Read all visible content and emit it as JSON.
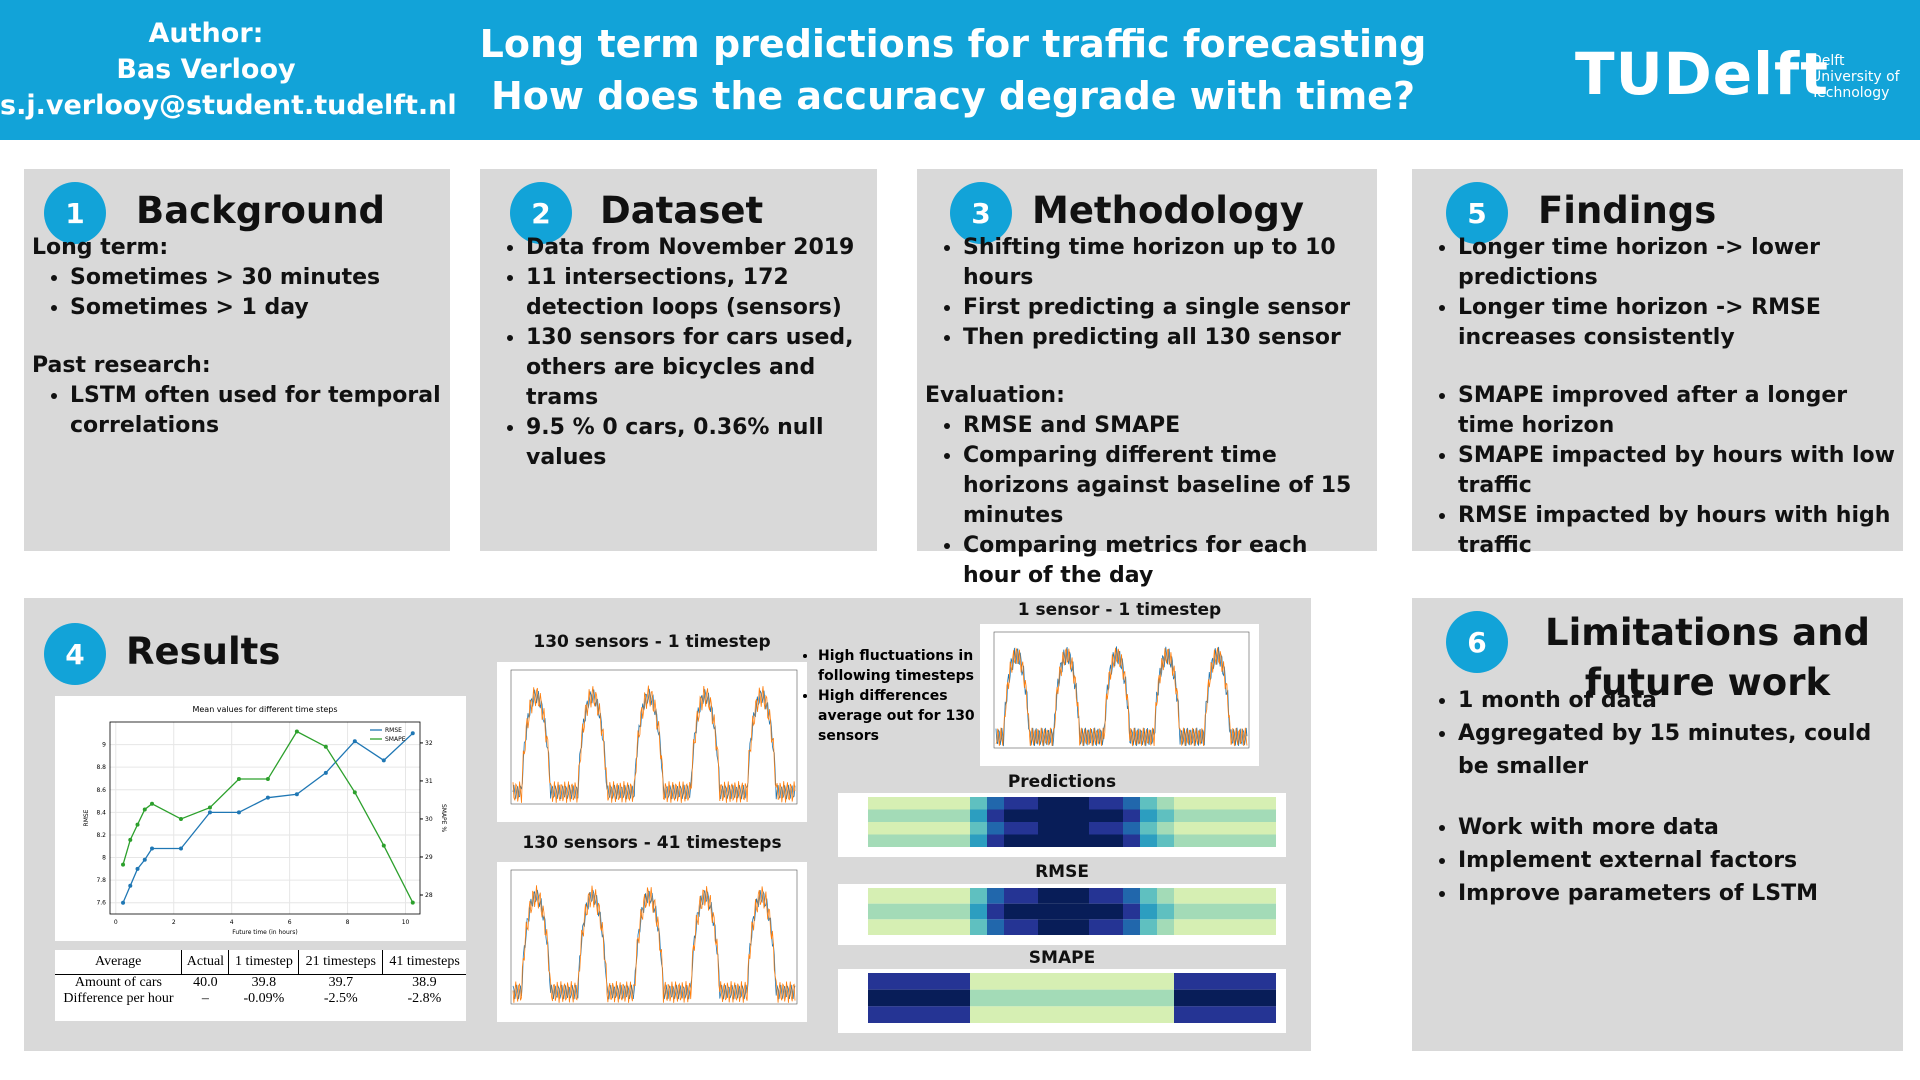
{
  "header": {
    "author_label": "Author:",
    "author_name": "Bas Verlooy",
    "email": "s.j.verlooy@student.tudelft.nl",
    "title_line1": "Long term predictions for traffic forecasting",
    "title_line2": "How does the accuracy degrade with time?",
    "logo": "TUDelft",
    "logo_sub": [
      "Delft",
      "University of",
      "Technology"
    ]
  },
  "sections": [
    {
      "number": "1",
      "title": "Background",
      "blocks": [
        {
          "heading": "Long term:",
          "items": [
            "Sometimes  > 30 minutes",
            "Sometimes > 1 day"
          ]
        },
        {
          "heading": "Past research:",
          "items": [
            "LSTM often used for temporal correlations"
          ]
        }
      ]
    },
    {
      "number": "2",
      "title": "Dataset",
      "blocks": [
        {
          "items": [
            "Data from November 2019",
            "11 intersections, 172 detection loops (sensors)",
            "130 sensors for cars used, others are bicycles and trams",
            "9.5 % 0 cars, 0.36% null values"
          ]
        }
      ]
    },
    {
      "number": "3",
      "title": "Methodology",
      "blocks": [
        {
          "items": [
            "Shifting time horizon up to 10 hours",
            "First predicting a single sensor",
            "Then predicting all 130 sensor"
          ]
        },
        {
          "heading": "Evaluation:",
          "items": [
            "RMSE and SMAPE",
            "Comparing different time horizons against baseline of 15 minutes",
            "Comparing metrics for each hour of the day"
          ]
        }
      ]
    },
    {
      "number": "5",
      "title": "Findings",
      "blocks": [
        {
          "items": [
            "Longer time horizon -> lower predictions",
            "Longer time horizon -> RMSE increases consistently"
          ]
        },
        {
          "items": [
            "SMAPE improved after a longer time horizon",
            "SMAPE impacted by hours with low traffic",
            "RMSE impacted by hours with high traffic"
          ]
        }
      ]
    },
    {
      "number": "6",
      "title": "Limitations and future work",
      "blocks": [
        {
          "items": [
            "1 month of data",
            "Aggregated by 15 minutes, could be smaller"
          ]
        },
        {
          "items": [
            "Work with more data",
            "Implement external factors",
            "Improve parameters of LSTM"
          ]
        }
      ]
    }
  ],
  "results": {
    "number": "4",
    "title": "Results",
    "figures": [
      "130 sensors - 1 timestep",
      "130 sensors - 41 timesteps",
      "1 sensor - 1 timestep",
      "Predictions",
      "RMSE",
      "SMAPE"
    ],
    "notes": [
      "High fluctuations in following timesteps",
      "High differences average out for 130 sensors"
    ],
    "table": {
      "header": [
        "Average",
        "Actual",
        "1 timestep",
        "21 timesteps",
        "41 timesteps"
      ],
      "rows": [
        [
          "Amount of cars",
          "40.0",
          "39.8",
          "39.7",
          "38.9"
        ],
        [
          "Difference per hour",
          "–",
          "-0.09%",
          "-2.5%",
          "-2.8%"
        ]
      ]
    }
  },
  "chart_data": {
    "type": "line",
    "title": "Mean values for different time steps",
    "xlabel": "Future time (in hours)",
    "ylabel": "RMSE",
    "y2label": "SMAPE %",
    "x": [
      0.25,
      0.5,
      0.75,
      1,
      1.25,
      2.25,
      3.25,
      4.25,
      5.25,
      6.25,
      7.25,
      8.25,
      9.25,
      10.25
    ],
    "series": [
      {
        "name": "RMSE",
        "color": "#1f77b4",
        "values": [
          7.6,
          7.75,
          7.9,
          7.98,
          8.08,
          8.08,
          8.4,
          8.4,
          8.53,
          8.56,
          8.75,
          9.03,
          8.86,
          9.1
        ]
      },
      {
        "name": "SMAPE",
        "color": "#2ca02c",
        "axis": "y2",
        "values": [
          28.8,
          29.45,
          29.85,
          30.25,
          30.4,
          30.0,
          30.3,
          31.05,
          31.05,
          32.3,
          31.9,
          30.7,
          29.3,
          27.8
        ]
      }
    ],
    "xlim": [
      -0.2,
      10.5
    ],
    "xticks": [
      0,
      2,
      4,
      6,
      8,
      10
    ],
    "ylim": [
      7.5,
      9.2
    ],
    "yticks": [
      7.6,
      7.8,
      8.0,
      8.2,
      8.4,
      8.6,
      8.8,
      9.0
    ],
    "y2lim": [
      27.5,
      32.55
    ],
    "y2ticks": [
      28,
      29,
      30,
      31,
      32
    ],
    "legend": "upper right",
    "grid": true
  }
}
